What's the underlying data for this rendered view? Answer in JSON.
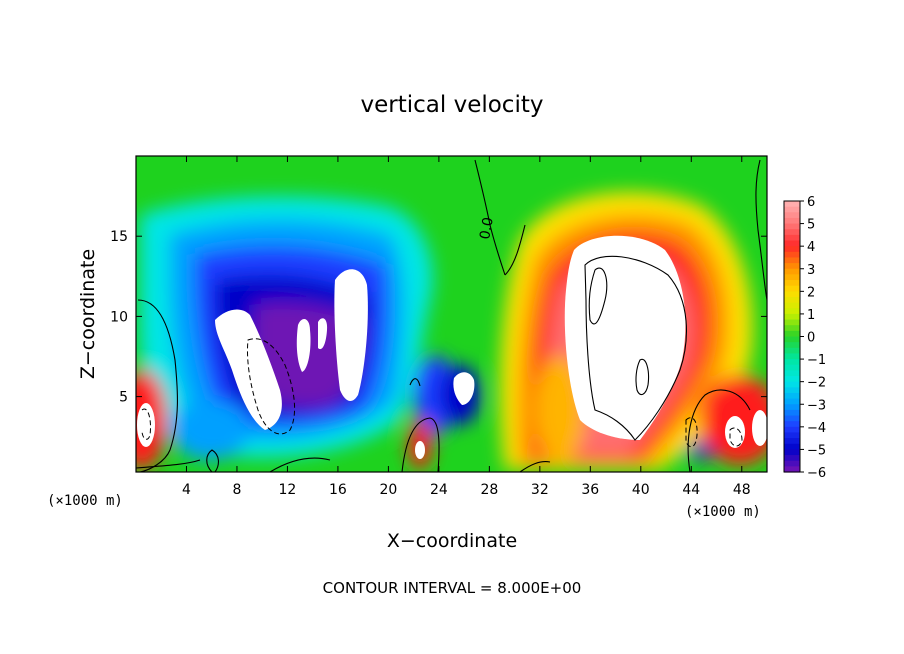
{
  "chart_data": {
    "type": "heatmap",
    "title": "vertical velocity",
    "xlabel": "X−coordinate",
    "ylabel": "Z−coordinate",
    "x_unit": "(×1000 m)",
    "y_unit": "(×1000 m)",
    "x_ticks": [
      4,
      8,
      12,
      16,
      20,
      24,
      28,
      32,
      36,
      40,
      44,
      48
    ],
    "y_ticks": [
      5,
      10,
      15
    ],
    "xlim": [
      0,
      50
    ],
    "ylim": [
      0.3,
      20
    ],
    "colorbar": {
      "ticks": [
        6,
        5,
        4,
        3,
        2,
        1,
        0,
        -1,
        -2,
        -3,
        -4,
        -5,
        -6
      ],
      "labels": [
        "6",
        "5",
        "4",
        "3",
        "2",
        "1",
        "0",
        "−1",
        "−2",
        "−3",
        "−4",
        "−5",
        "−6"
      ],
      "range": [
        -6,
        6
      ]
    },
    "annotation": "CONTOUR INTERVAL = 8.000E+00",
    "contour_label": "0.0",
    "features": [
      {
        "kind": "downdraft",
        "x": 11,
        "z": 7,
        "value": -10
      },
      {
        "kind": "downdraft",
        "x": 17,
        "z": 10,
        "value": -8
      },
      {
        "kind": "downdraft",
        "x": 25.5,
        "z": 5,
        "value": -7
      },
      {
        "kind": "updraft",
        "x": 37,
        "z": 10,
        "value": 10
      },
      {
        "kind": "updraft",
        "x": 22.5,
        "z": 1.5,
        "value": 6
      },
      {
        "kind": "updraft",
        "x": 46.5,
        "z": 3,
        "value": 8
      },
      {
        "kind": "updraft",
        "x": 0.5,
        "z": 3,
        "value": 8
      }
    ]
  }
}
